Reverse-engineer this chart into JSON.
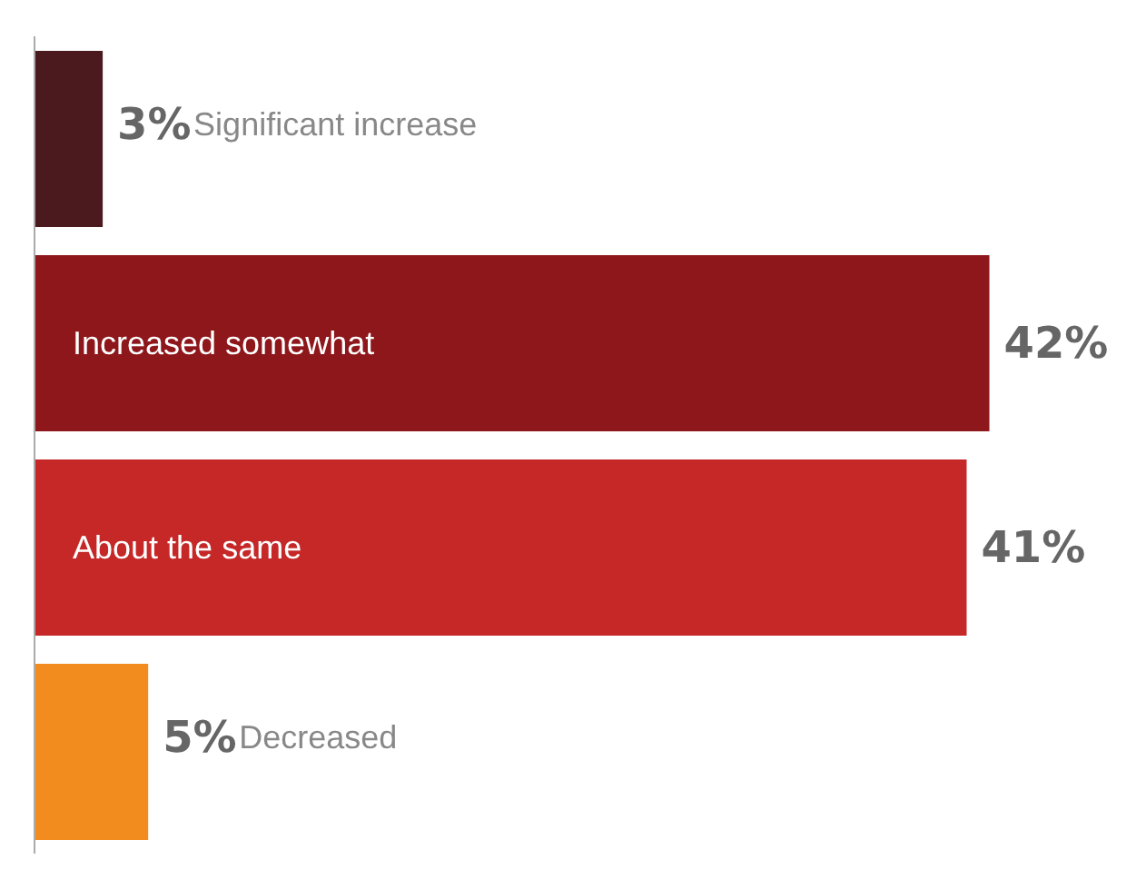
{
  "chart_data": {
    "type": "bar",
    "orientation": "horizontal",
    "categories": [
      "Significant increase",
      "Increased somewhat",
      "About the same",
      "Decreased"
    ],
    "values": [
      3,
      42,
      41,
      5
    ],
    "colors": [
      "#4a1a1e",
      "#8e171b",
      "#c62828",
      "#f28c1e"
    ],
    "value_labels": [
      "3%",
      "42%",
      "41%",
      "5%"
    ],
    "tick_labels": false,
    "grid": false,
    "legend": false
  }
}
